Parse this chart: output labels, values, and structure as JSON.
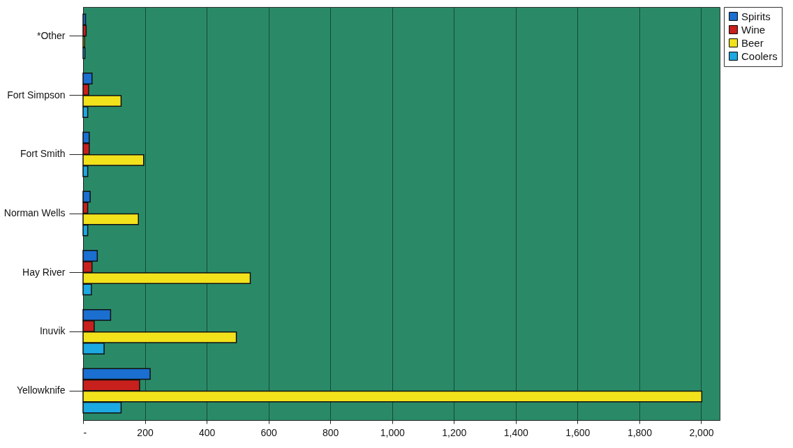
{
  "chart_data": {
    "type": "bar",
    "orientation": "horizontal",
    "categories": [
      "*Other",
      "Fort Simpson",
      "Fort Smith",
      "Norman Wells",
      "Hay River",
      "Inuvik",
      "Yellowknife"
    ],
    "series": [
      {
        "name": "Spirits",
        "color": "#1a6fd0",
        "values": [
          8,
          29,
          20,
          23,
          46,
          89,
          217
        ]
      },
      {
        "name": "Wine",
        "color": "#c8201c",
        "values": [
          10,
          18,
          20,
          15,
          29,
          36,
          183
        ]
      },
      {
        "name": "Beer",
        "color": "#f2e21c",
        "values": [
          5,
          123,
          196,
          179,
          541,
          496,
          2002
        ]
      },
      {
        "name": "Coolers",
        "color": "#1ca8e0",
        "values": [
          6,
          15,
          15,
          15,
          27,
          68,
          123
        ]
      }
    ],
    "xlim": [
      0,
      2060
    ],
    "xticks": [
      {
        "value": 0,
        "label": "-"
      },
      200,
      400,
      600,
      800,
      {
        "value": 1000,
        "label": "1,000"
      },
      {
        "value": 1200,
        "label": "1,200"
      },
      {
        "value": 1400,
        "label": "1,400"
      },
      {
        "value": 1600,
        "label": "1,600"
      },
      {
        "value": 1800,
        "label": "1,800"
      },
      {
        "value": 2000,
        "label": "2,000"
      }
    ],
    "grid": "x",
    "legend": "right"
  }
}
